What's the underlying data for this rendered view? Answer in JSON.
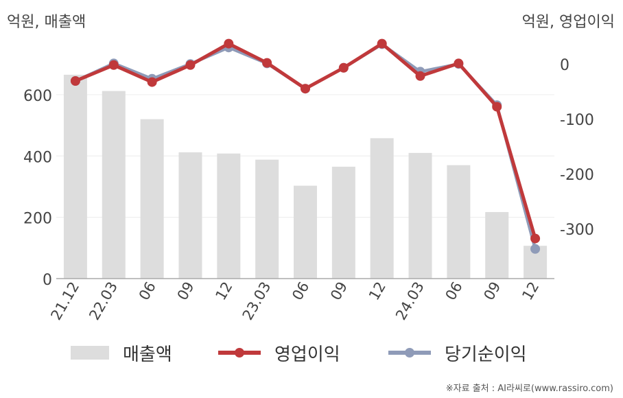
{
  "chart_data": {
    "type": "bar+line",
    "left_axis_unit": "억원, 매출액",
    "right_axis_unit": "억원, 영업이익",
    "categories": [
      "21.12",
      "22.03",
      "06",
      "09",
      "12",
      "23.03",
      "06",
      "09",
      "12",
      "24.03",
      "06",
      "09",
      "12"
    ],
    "left_axis": {
      "ticks": [
        0,
        200,
        400,
        600
      ],
      "min": 0,
      "max": 770
    },
    "right_axis": {
      "ticks": [
        0,
        -100,
        -200,
        -300
      ],
      "min": -390,
      "max": 40
    },
    "series": [
      {
        "name": "매출액",
        "type": "bar",
        "axis": "left",
        "color": "#dddddd",
        "values": [
          665,
          612,
          520,
          412,
          408,
          388,
          303,
          365,
          458,
          410,
          370,
          217,
          107
        ]
      },
      {
        "name": "영업이익",
        "type": "line",
        "axis": "right",
        "color": "#c0393b",
        "values": [
          -30,
          -1,
          -32,
          -1,
          38,
          3,
          -44,
          -6,
          38,
          -21,
          2,
          -77,
          -317
        ]
      },
      {
        "name": "당기순이익",
        "type": "line",
        "axis": "right",
        "color": "#8f9bb8",
        "values": [
          -30,
          2,
          -26,
          1,
          31,
          2,
          -44,
          -6,
          37,
          -13,
          1,
          -74,
          -336
        ]
      }
    ],
    "legend": [
      "매출액",
      "영업이익",
      "당기순이익"
    ],
    "legend_position": "bottom",
    "grid": true
  },
  "source_text": "※자료 출처 : AI라씨로(www.rassiro.com)"
}
